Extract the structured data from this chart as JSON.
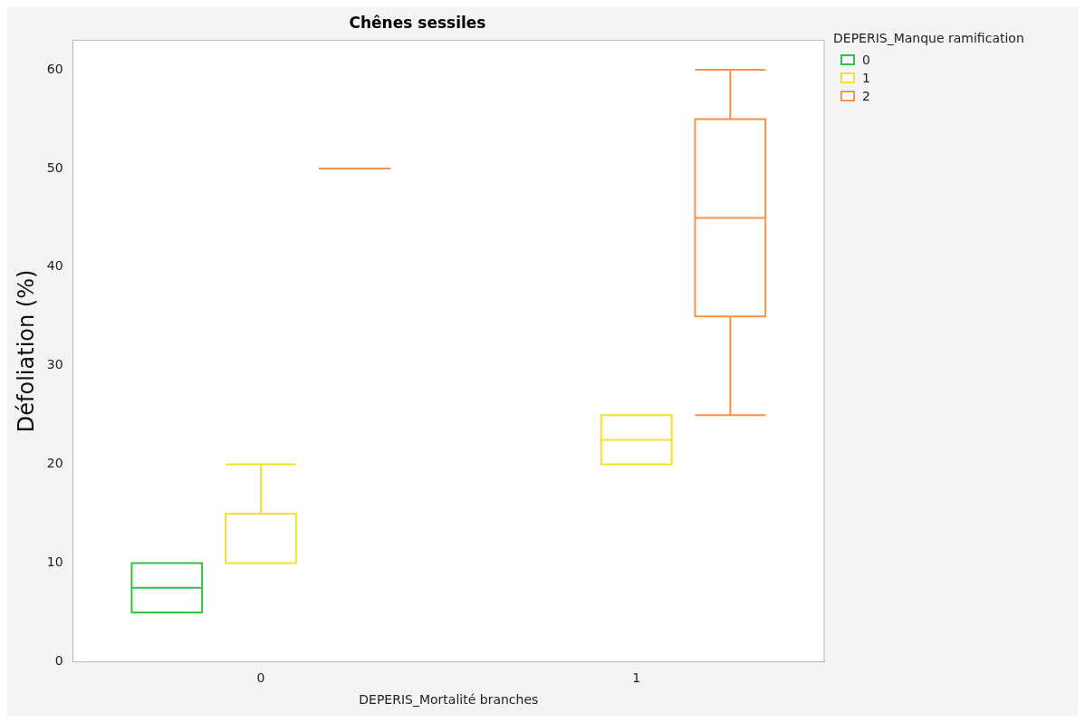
{
  "chart_data": {
    "type": "box",
    "title": "Chênes sessiles",
    "xlabel": "DEPERIS_Mortalité branches",
    "ylabel": "Défoliation (%)",
    "legend_title": "DEPERIS_Manque ramification",
    "categories": [
      "0",
      "1"
    ],
    "ylim": [
      0,
      63
    ],
    "yticks": [
      0,
      10,
      20,
      30,
      40,
      50,
      60
    ],
    "grid": false,
    "legend": "right",
    "series": [
      {
        "name": "0",
        "color": "#33c23f",
        "boxes": [
          {
            "low": 5,
            "q1": 5,
            "median": 7.5,
            "q3": 10,
            "high": 10
          },
          null
        ]
      },
      {
        "name": "1",
        "color": "#f2e22c",
        "boxes": [
          {
            "low": 10,
            "q1": 10,
            "median": 10,
            "q3": 15,
            "high": 20
          },
          {
            "low": 20,
            "q1": 20,
            "median": 22.5,
            "q3": 25,
            "high": 25
          }
        ]
      },
      {
        "name": "2",
        "color": "#f5934a",
        "boxes": [
          {
            "low": 50,
            "q1": 50,
            "median": 50,
            "q3": 50,
            "high": 50
          },
          {
            "low": 25,
            "q1": 35,
            "median": 45,
            "q3": 55,
            "high": 60
          }
        ]
      }
    ]
  }
}
